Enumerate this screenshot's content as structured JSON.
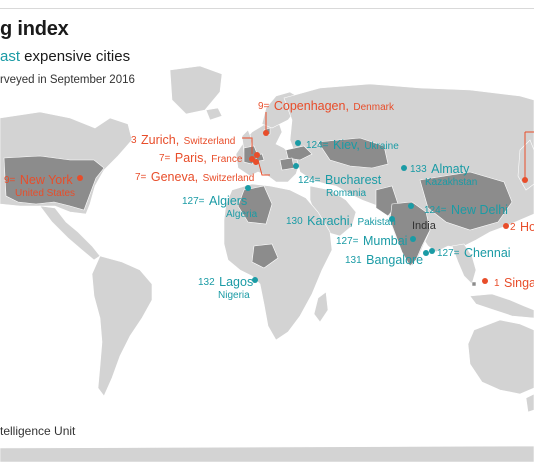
{
  "header": {
    "title": "g index",
    "subtitle_accent": "ast",
    "subtitle_rest": " expensive cities",
    "note": "rveyed in September 2016"
  },
  "footer": {
    "source": "telligence Unit"
  },
  "colors": {
    "expensive": "#e84d2a",
    "cheap": "#1a9ba5",
    "land": "#d3d3d3",
    "ocean": "#ffffff",
    "highlight": "#8c8c8c"
  },
  "cities": {
    "copenhagen": {
      "rank": "9=",
      "name": "Copenhagen,",
      "country": "Denmark"
    },
    "zurich": {
      "rank": "3",
      "name": "Zurich,",
      "country": "Switzerland"
    },
    "paris": {
      "rank": "7=",
      "name": "Paris,",
      "country": "France"
    },
    "geneva": {
      "rank": "7=",
      "name": "Geneva,",
      "country": "Switzerland"
    },
    "new_york": {
      "rank": "9=",
      "name": "New York",
      "country": "United States"
    },
    "kiev": {
      "rank": "124=",
      "name": "Kiev,",
      "country": "Ukraine"
    },
    "almaty": {
      "rank": "133",
      "name": "Almaty",
      "country": "Kazakhstan"
    },
    "bucharest": {
      "rank": "124=",
      "name": "Bucharest",
      "country": "Romania"
    },
    "algiers": {
      "rank": "127=",
      "name": "Algiers",
      "country": "Algeria"
    },
    "karachi": {
      "rank": "130",
      "name": "Karachi,",
      "country": "Pakistan"
    },
    "new_delhi": {
      "rank": "124=",
      "name": "New Delhi"
    },
    "mumbai": {
      "rank": "127=",
      "name": "Mumbai"
    },
    "chennai": {
      "rank": "127=",
      "name": "Chennai"
    },
    "bangalore": {
      "rank": "131",
      "name": "Bangalore"
    },
    "lagos": {
      "rank": "132",
      "name": "Lagos",
      "country": "Nigeria"
    },
    "hong_kong": {
      "rank": "2",
      "name": "Ho"
    },
    "singapore": {
      "rank": "1",
      "name": "Singa"
    }
  },
  "map_labels": {
    "india": "India"
  }
}
